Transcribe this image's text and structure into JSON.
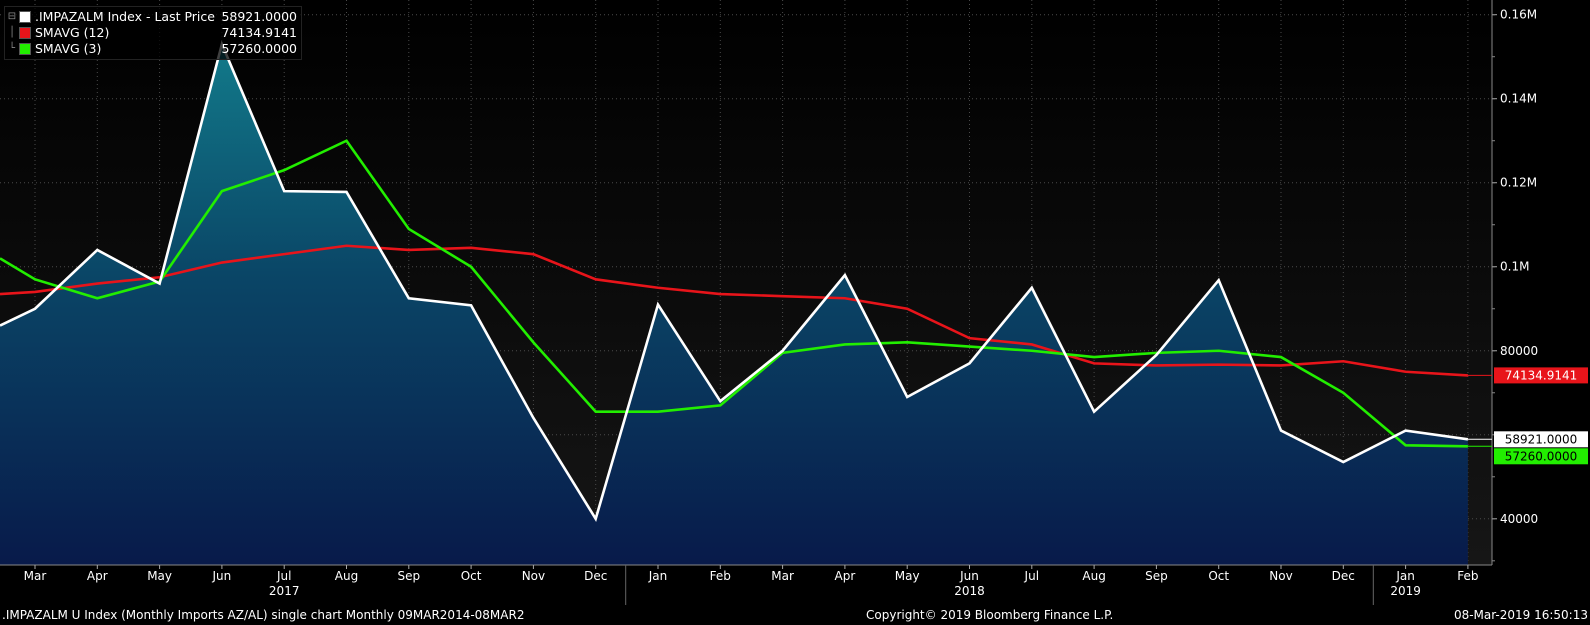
{
  "legend": [
    {
      "name": ".IMPAZALM Index - Last Price",
      "value": "58921.0000",
      "color": "#ffffff"
    },
    {
      "name": "SMAVG (12)",
      "value": "74134.9141",
      "color": "#e8141a"
    },
    {
      "name": "SMAVG (3)",
      "value": "57260.0000",
      "color": "#22ee00"
    }
  ],
  "footer": {
    "left": ".IMPAZALM U Index (Monthly Imports AZ/AL) single chart  Monthly 09MAR2014-08MAR2",
    "center": "Copyright© 2019 Bloomberg Finance L.P.",
    "right": "08-Mar-2019 16:50:13"
  },
  "end_labels": {
    "sma12": "74134.9141",
    "price": "58921.0000",
    "sma3": "57260.0000"
  },
  "chart_data": {
    "type": "area",
    "categories": [
      "Mar",
      "Apr",
      "May",
      "Jun",
      "Jul",
      "Aug",
      "Sep",
      "Oct",
      "Nov",
      "Dec",
      "Jan",
      "Feb",
      "Mar",
      "Apr",
      "May",
      "Jun",
      "Jul",
      "Aug",
      "Sep",
      "Oct",
      "Nov",
      "Dec",
      "Jan",
      "Feb"
    ],
    "years": [
      {
        "label": "2017",
        "index": 4
      },
      {
        "label": "2018",
        "index": 15
      },
      {
        "label": "2019",
        "index": 22
      }
    ],
    "year_separators_after_index": [
      9,
      21
    ],
    "y_ticks": [
      {
        "value": 40000,
        "label": "40000"
      },
      {
        "value": 80000,
        "label": "80000"
      },
      {
        "value": 100000,
        "label": "0.1M"
      },
      {
        "value": 120000,
        "label": "0.12M"
      },
      {
        "value": 140000,
        "label": "0.14M"
      },
      {
        "value": 160000,
        "label": "0.16M"
      }
    ],
    "ylim": [
      29000,
      163500
    ],
    "xlim": [
      -0.55,
      23.0
    ],
    "grid": true,
    "legend_position": "top-left",
    "series": [
      {
        "name": ".IMPAZALM Index - Last Price",
        "color": "#ffffff",
        "fill": true,
        "lead_in": 86000,
        "values": [
          90000,
          104000,
          96000,
          153000,
          118000,
          117800,
          92500,
          90800,
          64000,
          40000,
          91000,
          68000,
          80000,
          98000,
          69000,
          77000,
          95000,
          65500,
          79000,
          96800,
          61000,
          53500,
          61000,
          58921
        ]
      },
      {
        "name": "SMAVG (12)",
        "color": "#e8141a",
        "fill": false,
        "lead_in": 93500,
        "values": [
          94000,
          96000,
          97500,
          101000,
          103000,
          105000,
          104000,
          104500,
          103000,
          97000,
          95000,
          93500,
          93000,
          92500,
          90000,
          83000,
          81500,
          77000,
          76500,
          76700,
          76500,
          77500,
          75000,
          74134.9141
        ]
      },
      {
        "name": "SMAVG (3)",
        "color": "#22ee00",
        "fill": false,
        "lead_in": 102000,
        "values": [
          97000,
          92500,
          96500,
          118000,
          123000,
          130000,
          109000,
          100000,
          82000,
          65500,
          65500,
          67000,
          79500,
          81500,
          82000,
          81000,
          80000,
          78500,
          79500,
          80000,
          78500,
          70000,
          57500,
          57260
        ]
      }
    ]
  }
}
